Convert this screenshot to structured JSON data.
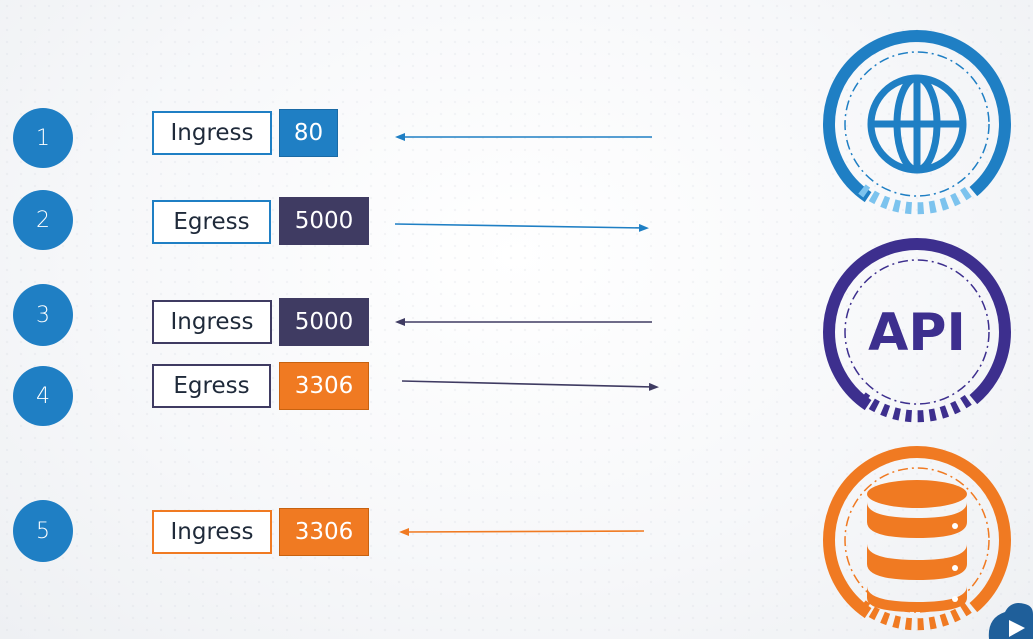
{
  "rules": [
    {
      "number": "1",
      "direction": "Ingress",
      "port": "80"
    },
    {
      "number": "2",
      "direction": "Egress",
      "port": "5000"
    },
    {
      "number": "3",
      "direction": "Ingress",
      "port": "5000"
    },
    {
      "number": "4",
      "direction": "Egress",
      "port": "3306"
    },
    {
      "number": "5",
      "direction": "Ingress",
      "port": "3306"
    }
  ],
  "pods": [
    {
      "name": "globe-icon",
      "color": "#1f7fc4"
    },
    {
      "name": "api-icon",
      "label": "API",
      "color": "#3d2f8e"
    },
    {
      "name": "database-icon",
      "color": "#f07a22"
    }
  ],
  "colors": {
    "blue": "#1f7fc4",
    "purple": "#3d2f8e",
    "dark_port": "#3f3b62",
    "orange": "#f07a22"
  }
}
